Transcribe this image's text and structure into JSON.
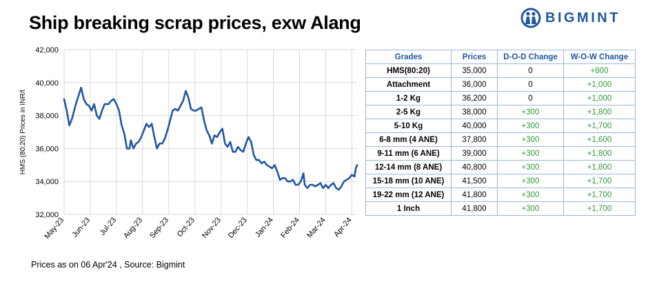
{
  "title": "Ship breaking scrap prices, exw Alang",
  "logo": {
    "text": "BIGMINT",
    "icon": "bigmint-globe-icon"
  },
  "footer": "Prices as on 06 Apr'24 , Source: Bigmint",
  "colors": {
    "line": "#1e56a0",
    "header": "#1e56a0",
    "positive": "#2e9a35",
    "border": "#9ab7d8"
  },
  "table": {
    "headers": [
      "Grades",
      "Prices",
      "D-O-D Change",
      "W-O-W Change"
    ],
    "rows": [
      {
        "grade": "HMS(80:20)",
        "price": "35,000",
        "dod": "0",
        "wow": "+800"
      },
      {
        "grade": "Attachment",
        "price": "36,000",
        "dod": "0",
        "wow": "+1,000"
      },
      {
        "grade": "1-2 Kg",
        "price": "36,200",
        "dod": "0",
        "wow": "+1,000"
      },
      {
        "grade": "2-5 Kg",
        "price": "38,000",
        "dod": "+300",
        "wow": "+1,800"
      },
      {
        "grade": "5-10 Kg",
        "price": "40,000",
        "dod": "+300",
        "wow": "+1,700"
      },
      {
        "grade": "6-8 mm (4 ANE)",
        "price": "37,800",
        "dod": "+300",
        "wow": "+1,600"
      },
      {
        "grade": "9-11 mm (6 ANE)",
        "price": "39,000",
        "dod": "+300",
        "wow": "+1,800"
      },
      {
        "grade": "12-14 mm (8 ANE)",
        "price": "40,800",
        "dod": "+300",
        "wow": "+1,800"
      },
      {
        "grade": "15-18 mm (10 ANE)",
        "price": "41,500",
        "dod": "+300",
        "wow": "+1,700"
      },
      {
        "grade": "19-22 mm (12 ANE)",
        "price": "41,800",
        "dod": "+300",
        "wow": "+1,700"
      },
      {
        "grade": "1 Inch",
        "price": "41,800",
        "dod": "+300",
        "wow": "+1,700"
      }
    ]
  },
  "chart_data": {
    "type": "line",
    "title": "",
    "xlabel": "",
    "ylabel": "HMS (80:20) Prices in INR/t",
    "ylim": [
      32000,
      42000
    ],
    "yticks": [
      32000,
      34000,
      36000,
      38000,
      40000,
      42000
    ],
    "ytick_labels": [
      "32,000",
      "34,000",
      "36,000",
      "38,000",
      "40,000",
      "42,000"
    ],
    "xlim": [
      0,
      11.2
    ],
    "xticks": [
      0,
      1,
      2,
      3,
      4,
      5,
      6,
      7,
      8,
      9,
      10,
      11
    ],
    "xtick_labels": [
      "May-23",
      "Jun-23",
      "Jul-23",
      "Aug-23",
      "Sep-23",
      "Oct-23",
      "Nov-23",
      "Dec-23",
      "Jan-24",
      "Feb-24",
      "Mar-24",
      "Apr-24"
    ],
    "grid": true,
    "legend": "none",
    "series": [
      {
        "values": [
          [
            0.0,
            39000
          ],
          [
            0.1,
            38300
          ],
          [
            0.2,
            37400
          ],
          [
            0.3,
            37800
          ],
          [
            0.45,
            38700
          ],
          [
            0.55,
            39200
          ],
          [
            0.65,
            39700
          ],
          [
            0.75,
            39000
          ],
          [
            0.85,
            38700
          ],
          [
            0.95,
            38600
          ],
          [
            1.05,
            38300
          ],
          [
            1.15,
            38700
          ],
          [
            1.25,
            38000
          ],
          [
            1.35,
            37800
          ],
          [
            1.45,
            38300
          ],
          [
            1.55,
            38700
          ],
          [
            1.7,
            38700
          ],
          [
            1.8,
            38900
          ],
          [
            1.9,
            39000
          ],
          [
            2.0,
            38700
          ],
          [
            2.1,
            38300
          ],
          [
            2.2,
            37400
          ],
          [
            2.3,
            36900
          ],
          [
            2.4,
            36000
          ],
          [
            2.5,
            36000
          ],
          [
            2.55,
            36500
          ],
          [
            2.65,
            36000
          ],
          [
            2.75,
            36300
          ],
          [
            2.85,
            36400
          ],
          [
            2.95,
            36700
          ],
          [
            3.05,
            37100
          ],
          [
            3.15,
            37500
          ],
          [
            3.25,
            37300
          ],
          [
            3.35,
            37500
          ],
          [
            3.45,
            36700
          ],
          [
            3.55,
            36000
          ],
          [
            3.65,
            36300
          ],
          [
            3.75,
            36300
          ],
          [
            3.85,
            36600
          ],
          [
            3.95,
            37100
          ],
          [
            4.05,
            37700
          ],
          [
            4.15,
            38300
          ],
          [
            4.25,
            38400
          ],
          [
            4.35,
            38300
          ],
          [
            4.45,
            38600
          ],
          [
            4.55,
            38900
          ],
          [
            4.65,
            39500
          ],
          [
            4.75,
            39100
          ],
          [
            4.85,
            38400
          ],
          [
            4.95,
            38300
          ],
          [
            5.05,
            38300
          ],
          [
            5.15,
            38400
          ],
          [
            5.25,
            38500
          ],
          [
            5.35,
            37700
          ],
          [
            5.45,
            37100
          ],
          [
            5.55,
            36800
          ],
          [
            5.65,
            36300
          ],
          [
            5.75,
            36800
          ],
          [
            5.85,
            36700
          ],
          [
            5.95,
            37000
          ],
          [
            6.05,
            37200
          ],
          [
            6.15,
            36300
          ],
          [
            6.25,
            36100
          ],
          [
            6.35,
            36400
          ],
          [
            6.45,
            35800
          ],
          [
            6.55,
            35800
          ],
          [
            6.65,
            36100
          ],
          [
            6.75,
            35900
          ],
          [
            6.85,
            35800
          ],
          [
            6.95,
            36300
          ],
          [
            7.05,
            36700
          ],
          [
            7.15,
            36400
          ],
          [
            7.25,
            35600
          ],
          [
            7.35,
            35300
          ],
          [
            7.45,
            35300
          ],
          [
            7.55,
            35100
          ],
          [
            7.65,
            35200
          ],
          [
            7.75,
            35000
          ],
          [
            7.85,
            34900
          ],
          [
            7.95,
            34800
          ],
          [
            8.05,
            35000
          ],
          [
            8.15,
            34600
          ],
          [
            8.25,
            34100
          ],
          [
            8.35,
            34200
          ],
          [
            8.45,
            34200
          ],
          [
            8.55,
            34000
          ],
          [
            8.65,
            34000
          ],
          [
            8.75,
            34100
          ],
          [
            8.85,
            33800
          ],
          [
            8.95,
            33800
          ],
          [
            9.05,
            34000
          ],
          [
            9.15,
            34500
          ],
          [
            9.2,
            33800
          ],
          [
            9.3,
            33600
          ],
          [
            9.4,
            33800
          ],
          [
            9.5,
            33800
          ],
          [
            9.6,
            33700
          ],
          [
            9.7,
            33800
          ],
          [
            9.8,
            33900
          ],
          [
            9.9,
            33600
          ],
          [
            10.0,
            33800
          ],
          [
            10.1,
            33600
          ],
          [
            10.2,
            33800
          ],
          [
            10.3,
            33900
          ],
          [
            10.4,
            33600
          ],
          [
            10.5,
            33500
          ],
          [
            10.6,
            33700
          ],
          [
            10.7,
            34000
          ],
          [
            10.8,
            34100
          ],
          [
            10.9,
            34200
          ],
          [
            11.0,
            34400
          ],
          [
            11.1,
            34300
          ],
          [
            11.15,
            34800
          ],
          [
            11.2,
            35000
          ]
        ]
      }
    ]
  }
}
